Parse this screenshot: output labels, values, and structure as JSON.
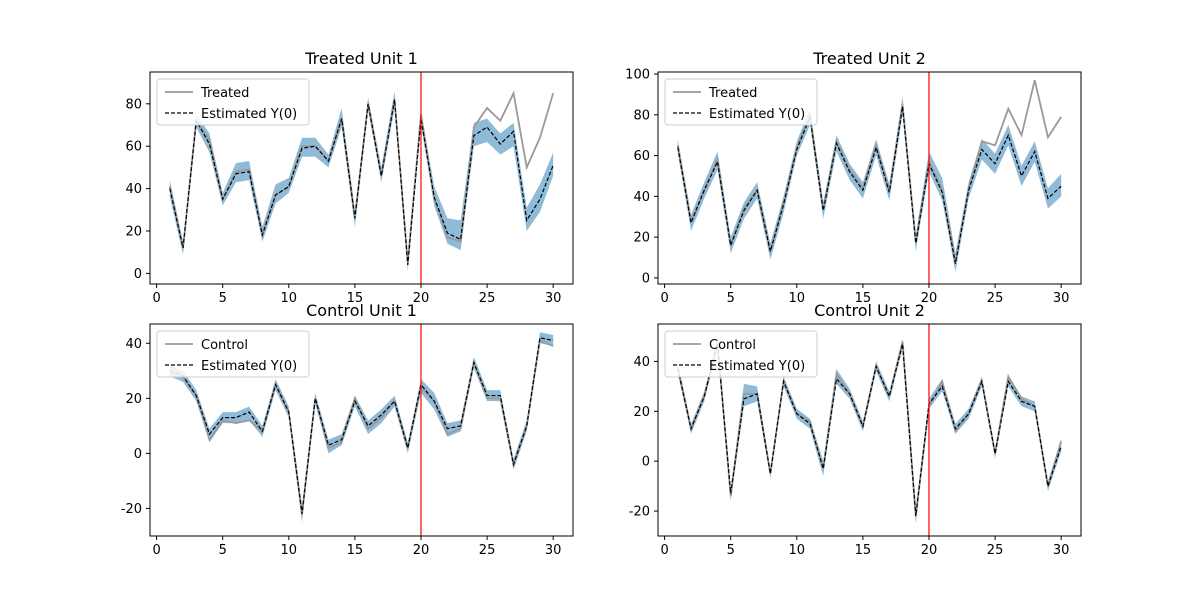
{
  "colors": {
    "observed": "#999999",
    "estimate": "#000000",
    "band": "#1f77b4",
    "treatment_line": "#ff0000"
  },
  "chart_data": [
    {
      "type": "line",
      "title": "Treated Unit 1",
      "xlim": [
        -0.5,
        31.5
      ],
      "ylim": [
        -5,
        95
      ],
      "xticks": [
        0,
        5,
        10,
        15,
        20,
        25,
        30
      ],
      "yticks": [
        0,
        20,
        40,
        60,
        80
      ],
      "treatment_time": 20,
      "legend": {
        "position": "top-left"
      },
      "x": [
        1,
        2,
        3,
        4,
        5,
        6,
        7,
        8,
        9,
        10,
        11,
        12,
        13,
        14,
        15,
        16,
        17,
        18,
        19,
        20,
        21,
        22,
        23,
        24,
        25,
        26,
        27,
        28,
        29,
        30
      ],
      "series": [
        {
          "name": "Treated",
          "style": "solid",
          "values": [
            41,
            12,
            72,
            63,
            35,
            48,
            49,
            19,
            37,
            41,
            60,
            60,
            53,
            73,
            26,
            80,
            46,
            82,
            5,
            75,
            35,
            17,
            15,
            69,
            78,
            72,
            85,
            50,
            64,
            85
          ]
        },
        {
          "name": "Estimated Y(0)",
          "style": "dashed",
          "values": [
            40,
            12,
            72,
            61,
            35,
            47,
            48,
            18,
            37,
            41,
            59,
            60,
            53,
            73,
            26,
            80,
            46,
            82,
            4,
            73,
            36,
            19,
            16,
            65,
            69,
            61,
            67,
            25,
            35,
            51
          ],
          "band_lower": [
            36,
            9,
            69,
            57,
            32,
            43,
            44,
            15,
            33,
            38,
            55,
            55,
            50,
            69,
            22,
            77,
            43,
            78,
            1,
            70,
            32,
            14,
            11,
            60,
            62,
            56,
            60,
            20,
            29,
            46
          ],
          "band_upper": [
            44,
            15,
            75,
            66,
            38,
            52,
            53,
            22,
            42,
            45,
            64,
            64,
            56,
            78,
            30,
            83,
            50,
            86,
            7,
            77,
            41,
            26,
            25,
            71,
            73,
            66,
            71,
            31,
            42,
            57
          ]
        }
      ]
    },
    {
      "type": "line",
      "title": "Treated Unit 2",
      "xlim": [
        -0.5,
        31.5
      ],
      "ylim": [
        -3,
        101
      ],
      "xticks": [
        0,
        5,
        10,
        15,
        20,
        25,
        30
      ],
      "yticks": [
        0,
        20,
        40,
        60,
        80,
        100
      ],
      "treatment_time": 20,
      "legend": {
        "position": "top-left"
      },
      "x": [
        1,
        2,
        3,
        4,
        5,
        6,
        7,
        8,
        9,
        10,
        11,
        12,
        13,
        14,
        15,
        16,
        17,
        18,
        19,
        20,
        21,
        22,
        23,
        24,
        25,
        26,
        27,
        28,
        29,
        30
      ],
      "series": [
        {
          "name": "Treated",
          "style": "solid",
          "values": [
            65,
            28,
            43,
            58,
            16,
            34,
            43,
            13,
            37,
            64,
            80,
            34,
            67,
            53,
            44,
            65,
            43,
            85,
            18,
            57,
            43,
            8,
            44,
            67,
            65,
            83,
            70,
            97,
            69,
            79
          ]
        },
        {
          "name": "Estimated Y(0)",
          "style": "dashed",
          "values": [
            64,
            27,
            43,
            57,
            16,
            33,
            43,
            13,
            36,
            63,
            79,
            33,
            66,
            52,
            43,
            64,
            42,
            84,
            17,
            56,
            42,
            7,
            43,
            63,
            56,
            70,
            50,
            62,
            39,
            45
          ],
          "band_lower": [
            61,
            23,
            39,
            53,
            12,
            29,
            39,
            9,
            32,
            60,
            75,
            29,
            62,
            48,
            39,
            60,
            38,
            80,
            13,
            52,
            38,
            3,
            39,
            58,
            51,
            65,
            45,
            57,
            34,
            40
          ],
          "band_upper": [
            68,
            31,
            47,
            62,
            20,
            37,
            47,
            17,
            40,
            67,
            83,
            37,
            70,
            56,
            47,
            68,
            46,
            89,
            21,
            62,
            49,
            12,
            47,
            68,
            61,
            75,
            55,
            67,
            44,
            51
          ]
        }
      ]
    },
    {
      "type": "line",
      "title": "Control Unit 1",
      "xlim": [
        -0.5,
        31.5
      ],
      "ylim": [
        -30,
        47
      ],
      "xticks": [
        0,
        5,
        10,
        15,
        20,
        25,
        30
      ],
      "yticks": [
        -20,
        0,
        20,
        40
      ],
      "treatment_time": 20,
      "legend": {
        "position": "top-left"
      },
      "x": [
        1,
        2,
        3,
        4,
        5,
        6,
        7,
        8,
        9,
        10,
        11,
        12,
        13,
        14,
        15,
        16,
        17,
        18,
        19,
        20,
        21,
        22,
        23,
        24,
        25,
        26,
        27,
        28,
        29,
        30
      ],
      "series": [
        {
          "name": "Control",
          "style": "solid",
          "values": [
            32,
            28,
            21,
            5,
            12,
            11,
            12,
            8,
            25,
            15,
            -22,
            20,
            2,
            4,
            20,
            9,
            13,
            19,
            2,
            24,
            19,
            7,
            9,
            33,
            20,
            20,
            -4,
            10,
            41,
            39
          ]
        },
        {
          "name": "Estimated Y(0)",
          "style": "dashed",
          "values": [
            30,
            28,
            21,
            7,
            13,
            13,
            15,
            8,
            25,
            15,
            -22,
            20,
            3,
            5,
            19,
            10,
            14,
            19,
            2,
            25,
            19,
            9,
            10,
            33,
            21,
            21,
            -4,
            10,
            42,
            41
          ],
          "band_lower": [
            28,
            26,
            19,
            4,
            11,
            11,
            12,
            6,
            23,
            13,
            -25,
            18,
            0,
            3,
            17,
            7,
            11,
            17,
            0,
            22,
            16,
            6,
            8,
            31,
            19,
            19,
            -6,
            8,
            40,
            39
          ],
          "band_upper": [
            32,
            30,
            23,
            9,
            15,
            15,
            17,
            10,
            27,
            17,
            -19,
            22,
            5,
            7,
            21,
            12,
            16,
            21,
            4,
            27,
            22,
            11,
            12,
            35,
            23,
            23,
            -2,
            12,
            44,
            43
          ]
        }
      ]
    },
    {
      "type": "line",
      "title": "Control Unit 2",
      "xlim": [
        -0.5,
        31.5
      ],
      "ylim": [
        -30,
        55
      ],
      "xticks": [
        0,
        5,
        10,
        15,
        20,
        25,
        30
      ],
      "yticks": [
        -20,
        0,
        20,
        40
      ],
      "treatment_time": 20,
      "legend": {
        "position": "top-left"
      },
      "x": [
        1,
        2,
        3,
        4,
        5,
        6,
        7,
        8,
        9,
        10,
        11,
        12,
        13,
        14,
        15,
        16,
        17,
        18,
        19,
        20,
        21,
        22,
        23,
        24,
        25,
        26,
        27,
        28,
        29,
        30
      ],
      "series": [
        {
          "name": "Control",
          "style": "solid",
          "values": [
            38,
            13,
            26,
            48,
            -14,
            27,
            27,
            -5,
            32,
            19,
            16,
            -3,
            35,
            27,
            14,
            38,
            26,
            48,
            -22,
            22,
            32,
            12,
            19,
            32,
            3,
            34,
            25,
            22,
            -10,
            8
          ]
        },
        {
          "name": "Estimated Y(0)",
          "style": "dashed",
          "values": [
            37,
            13,
            26,
            47,
            -13,
            25,
            27,
            -5,
            32,
            19,
            15,
            -3,
            33,
            27,
            14,
            38,
            26,
            47,
            -22,
            23,
            30,
            13,
            19,
            32,
            3,
            32,
            24,
            22,
            -10,
            6
          ],
          "band_lower": [
            35,
            11,
            24,
            45,
            -16,
            22,
            24,
            -7,
            30,
            17,
            13,
            -6,
            31,
            25,
            12,
            36,
            24,
            45,
            -25,
            21,
            28,
            11,
            17,
            30,
            1,
            30,
            22,
            20,
            -12,
            4
          ],
          "band_upper": [
            39,
            15,
            28,
            49,
            -11,
            31,
            30,
            -3,
            34,
            21,
            17,
            0,
            37,
            29,
            16,
            40,
            28,
            49,
            -19,
            25,
            33,
            15,
            21,
            34,
            5,
            34,
            26,
            24,
            -8,
            9
          ]
        }
      ]
    }
  ]
}
